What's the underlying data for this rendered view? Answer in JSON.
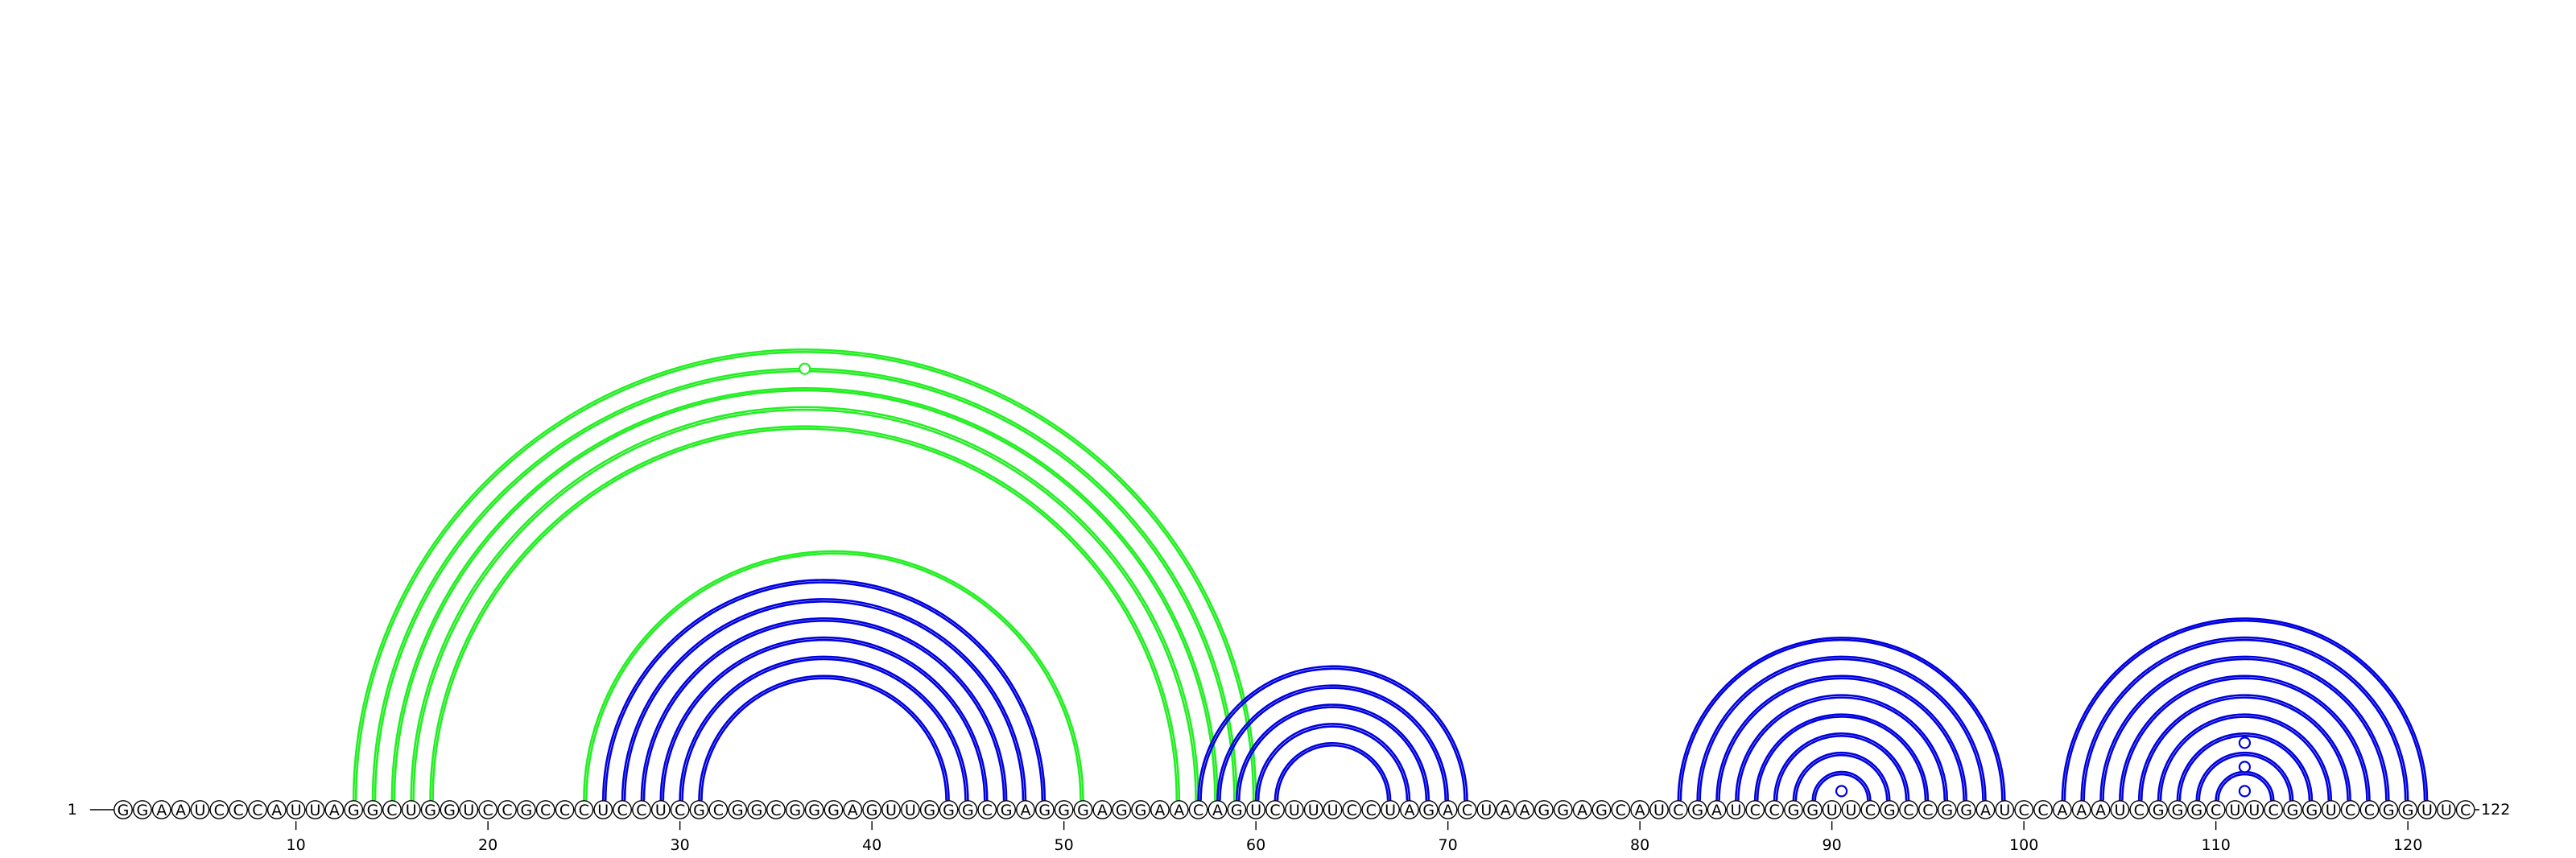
{
  "sequence": "GGAAUCCCAUUAGGCUGGUCCGCCCUCCUCGCGGCGGGAGUUGGGCGAGGGAGGAACAGUCUUUCCUAGACUAAGGAGCAUCGAUCCGGUUCGCCGGAUCCAAAUCGGGCUUCGGUCCGGUUC",
  "length": 122,
  "start_label": "1",
  "end_label": "122",
  "tick_positions": [
    10,
    20,
    30,
    40,
    50,
    60,
    70,
    80,
    90,
    100,
    110,
    120
  ],
  "tick_labels": [
    "10",
    "20",
    "30",
    "40",
    "50",
    "60",
    "70",
    "80",
    "90",
    "100",
    "110",
    "120"
  ],
  "colors": {
    "blue": "#0000dd",
    "green": "#22ee22",
    "text": "#000000"
  },
  "helices": [
    {
      "name": "green-pseudoknot",
      "color": "green",
      "pairs": [
        [
          13,
          60
        ],
        [
          14,
          59
        ],
        [
          15,
          58
        ],
        [
          16,
          57
        ],
        [
          17,
          56
        ]
      ],
      "mark_on": [
        [
          14,
          59
        ]
      ]
    },
    {
      "name": "green-stem-b",
      "color": "green",
      "pairs": [
        [
          25,
          51
        ]
      ]
    },
    {
      "name": "blue-stem-a",
      "color": "blue",
      "pairs": [
        [
          26,
          49
        ],
        [
          27,
          48
        ],
        [
          28,
          47
        ],
        [
          29,
          46
        ],
        [
          30,
          45
        ],
        [
          31,
          44
        ]
      ]
    },
    {
      "name": "blue-stem-b",
      "color": "blue",
      "pairs": [
        [
          57,
          71
        ],
        [
          58,
          70
        ],
        [
          59,
          69
        ],
        [
          60,
          68
        ],
        [
          61,
          67
        ]
      ]
    },
    {
      "name": "blue-stem-c",
      "color": "blue",
      "pairs": [
        [
          82,
          99
        ],
        [
          83,
          98
        ],
        [
          84,
          97
        ],
        [
          85,
          96
        ],
        [
          86,
          95
        ],
        [
          87,
          94
        ],
        [
          88,
          93
        ],
        [
          89,
          92
        ]
      ],
      "mark_on": [
        [
          90,
          91
        ]
      ]
    },
    {
      "name": "blue-stem-d",
      "color": "blue",
      "pairs": [
        [
          102,
          121
        ],
        [
          103,
          120
        ],
        [
          104,
          119
        ],
        [
          105,
          118
        ],
        [
          106,
          117
        ],
        [
          107,
          116
        ],
        [
          108,
          115
        ],
        [
          109,
          114
        ],
        [
          110,
          113
        ]
      ],
      "mark_on": [
        [
          111,
          112
        ],
        [
          111,
          112
        ],
        [
          111,
          112
        ]
      ]
    }
  ]
}
